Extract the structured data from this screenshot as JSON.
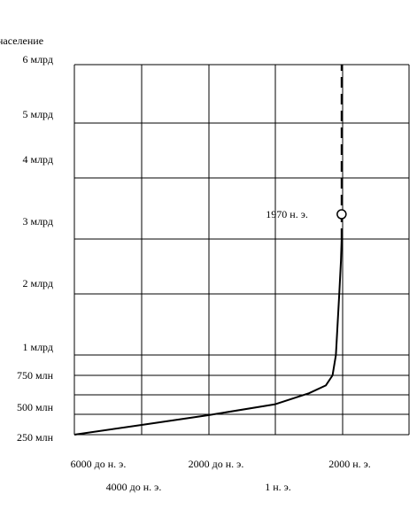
{
  "chart_data": {
    "type": "line",
    "ylabel": "население",
    "y_ticks": [
      "6 млрд",
      "5 млрд",
      "4 млрд",
      "3 млрд",
      "2 млрд",
      "1 млрд",
      "750 млн",
      "500 млн",
      "250 млн"
    ],
    "x_ticks_top": [
      "6000 до н. э.",
      "2000 до н. э.",
      "2000 н. э."
    ],
    "x_ticks_bottom": [
      "4000 до н. э.",
      "1 н. э."
    ],
    "x_tick_years": [
      -6000,
      -4000,
      -2000,
      1,
      2000
    ],
    "annotation": {
      "text": "1970 н. э.",
      "x": 1970,
      "y": 3.0
    },
    "series": [
      {
        "style": "solid",
        "x": [
          -6000,
          -4000,
          -2000,
          0,
          1000,
          1500,
          1700,
          1800,
          1850,
          1900,
          1950,
          1970
        ],
        "y": [
          0.25,
          0.31,
          0.37,
          0.44,
          0.52,
          0.62,
          0.75,
          1.0,
          1.5,
          2.0,
          2.6,
          3.0
        ]
      },
      {
        "style": "dashed",
        "x": [
          1970,
          1970
        ],
        "y": [
          3.0,
          6.0
        ]
      }
    ],
    "grid": true
  }
}
